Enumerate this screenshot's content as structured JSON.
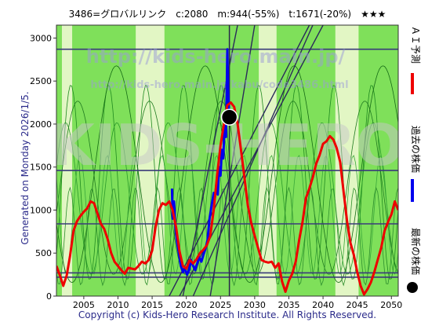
{
  "chart_data": {
    "type": "line",
    "title": "3486=グロバルリンク　c:2080　m:944(-55%)　t:1671(-20%)　★★★",
    "xlim": [
      2001,
      2051
    ],
    "ylim": [
      0,
      3150
    ],
    "xticks": [
      2005,
      2010,
      2015,
      2020,
      2025,
      2030,
      2035,
      2040,
      2045,
      2050
    ],
    "yticks": [
      0,
      500,
      1000,
      1500,
      2000,
      2500,
      3000
    ],
    "grid": false,
    "current_marker": {
      "x": 2026.3,
      "y": 2080
    },
    "current_year_line": 2026.3,
    "horizontal_levels": [
      2870,
      1460,
      840,
      270,
      220
    ],
    "background": {
      "base_color": "#7fe05a",
      "light_bands": [
        [
          2001.8,
          2003.3
        ],
        [
          2012.6,
          2016.8
        ],
        [
          2030.6,
          2033.2
        ],
        [
          2041.8,
          2045.2
        ]
      ],
      "light_color": "#e2f6c4"
    },
    "series": [
      {
        "name": "過去の株価",
        "color": "#0000ee",
        "x": [
          2017.9,
          2018.0,
          2018.2,
          2018.4,
          2018.6,
          2018.9,
          2019.2,
          2019.5,
          2019.8,
          2020.1,
          2020.4,
          2020.7,
          2021.0,
          2021.3,
          2021.6,
          2021.9,
          2022.2,
          2022.5,
          2022.8,
          2023.1,
          2023.4,
          2023.7,
          2024.0,
          2024.2,
          2024.4,
          2024.6,
          2024.8,
          2025.0,
          2025.2,
          2025.4,
          2025.6,
          2025.8,
          2026.0,
          2026.1,
          2026.3
        ],
        "values": [
          1250,
          900,
          1100,
          800,
          650,
          500,
          350,
          280,
          320,
          250,
          300,
          420,
          350,
          300,
          380,
          450,
          400,
          480,
          550,
          650,
          900,
          1050,
          1200,
          1150,
          1300,
          1180,
          1500,
          1400,
          1700,
          1600,
          2000,
          1850,
          2870,
          2400,
          2080
        ]
      },
      {
        "name": "ＡＩ予測",
        "color": "#ee0000",
        "x": [
          2001.0,
          2001.5,
          2002.0,
          2002.5,
          2003.0,
          2003.5,
          2004.0,
          2004.5,
          2005.0,
          2005.5,
          2006.0,
          2006.5,
          2007.0,
          2007.5,
          2008.0,
          2008.5,
          2009.0,
          2009.5,
          2010.0,
          2010.5,
          2011.0,
          2011.5,
          2012.0,
          2012.5,
          2013.0,
          2013.5,
          2014.0,
          2014.5,
          2015.0,
          2015.5,
          2016.0,
          2016.5,
          2017.0,
          2017.5,
          2018.0,
          2018.5,
          2019.0,
          2019.5,
          2020.0,
          2020.5,
          2021.0,
          2021.5,
          2022.0,
          2022.5,
          2023.0,
          2023.5,
          2024.0,
          2024.5,
          2025.0,
          2025.5,
          2026.0,
          2026.5,
          2027.0,
          2027.5,
          2028.0,
          2028.5,
          2029.0,
          2029.5,
          2030.0,
          2030.5,
          2031.0,
          2031.5,
          2032.0,
          2032.5,
          2033.0,
          2033.5,
          2034.0,
          2034.5,
          2035.0,
          2035.5,
          2036.0,
          2036.5,
          2037.0,
          2037.5,
          2038.0,
          2038.5,
          2039.0,
          2039.5,
          2040.0,
          2040.5,
          2041.0,
          2041.5,
          2042.0,
          2042.5,
          2043.0,
          2043.5,
          2044.0,
          2044.5,
          2045.0,
          2045.5,
          2046.0,
          2046.5,
          2047.0,
          2047.5,
          2048.0,
          2048.5,
          2049.0,
          2049.5,
          2050.0,
          2050.5,
          2051.0
        ],
        "values": [
          350,
          240,
          120,
          240,
          470,
          760,
          870,
          930,
          980,
          1020,
          1100,
          1080,
          960,
          840,
          780,
          660,
          500,
          400,
          350,
          300,
          260,
          330,
          320,
          310,
          350,
          400,
          380,
          420,
          530,
          800,
          1000,
          1080,
          1060,
          1100,
          1000,
          800,
          520,
          350,
          320,
          420,
          380,
          430,
          500,
          540,
          590,
          700,
          1000,
          1400,
          1750,
          2000,
          2220,
          2250,
          2200,
          2000,
          1700,
          1380,
          1050,
          850,
          700,
          560,
          420,
          400,
          390,
          400,
          330,
          380,
          170,
          50,
          180,
          260,
          400,
          650,
          860,
          1140,
          1250,
          1380,
          1540,
          1640,
          1770,
          1800,
          1860,
          1820,
          1720,
          1560,
          1220,
          880,
          620,
          480,
          280,
          120,
          20,
          80,
          160,
          280,
          420,
          560,
          760,
          860,
          950,
          1100,
          1000
        ]
      }
    ],
    "legend": {
      "placement": "right-vertical"
    },
    "side_labels": {
      "generated": "Generated on Monday 2026/1/5.",
      "latest": "最新の株価",
      "past": "過去の株価",
      "forecast": "ＡＩ予測"
    },
    "watermark": {
      "line1": "http://kids-hero.main.jp/",
      "line2": "http://kids-hero.main.jp/kabu/code3486.html",
      "big": "KIDS-HERO"
    },
    "footer": "Copyright (c) Kids-Hero Research Institute. All Rights Reserved."
  }
}
